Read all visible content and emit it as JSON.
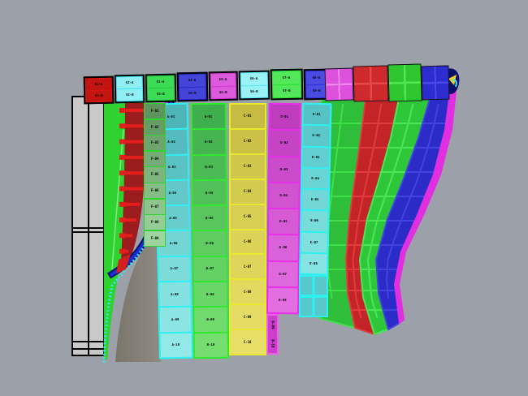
{
  "app": {
    "type": "3d-cad-viewport",
    "background": "#9CA1A9"
  },
  "top_row": {
    "panels": [
      {
        "color": "#DF1512",
        "sub_color": "#C21410",
        "labels": [
          "S1-A",
          "S1-B"
        ]
      },
      {
        "color": "#38E2EE",
        "sub_color": "#8FEFF4",
        "labels": [
          "S2-A",
          "S2-B"
        ]
      },
      {
        "color": "#27CB42",
        "sub_color": "#3BDB55",
        "labels": [
          "S3-A",
          "S3-B"
        ]
      },
      {
        "color": "#2A2BCB",
        "sub_color": "#4345D8",
        "labels": [
          "S4-A",
          "S4-B"
        ]
      },
      {
        "color": "#D236D2",
        "sub_color": "#DC5ADC",
        "labels": [
          "S5-A",
          "S5-B"
        ]
      },
      {
        "color": "#55E9F2",
        "sub_color": "#9BF2F6",
        "labels": [
          "S6-A",
          "S6-B"
        ]
      },
      {
        "color": "#2BDC34",
        "sub_color": "#52E85A",
        "labels": [
          "S7-A",
          "S7-B"
        ]
      },
      {
        "color": "#2F30D8",
        "sub_color": "#4A4BE2",
        "labels": [
          "S8-A",
          "S8-B"
        ]
      }
    ]
  },
  "plain_row": {
    "panels": [
      {
        "name": "panel-magenta",
        "color": "#DC52DC",
        "grid": "#EE84EE"
      },
      {
        "name": "panel-red",
        "color": "#CE292C",
        "grid": "#E5484B"
      },
      {
        "name": "panel-green",
        "color": "#2EC72E",
        "grid": "#52E852"
      },
      {
        "name": "panel-blue",
        "color": "#2C2CD0",
        "grid": "#4A4AE8"
      }
    ]
  },
  "plate_columns": [
    {
      "id": "A",
      "border": "#2FF0F0",
      "cells": [
        {
          "fill": "#4FB4B8",
          "label": "A-01"
        },
        {
          "fill": "#55BBBE",
          "label": "A-02"
        },
        {
          "fill": "#5BC2C4",
          "label": "A-03"
        },
        {
          "fill": "#62C8C9",
          "label": "A-04"
        },
        {
          "fill": "#68CECD",
          "label": "A-05"
        },
        {
          "fill": "#74D6D4",
          "label": "A-06"
        },
        {
          "fill": "#7DDCDA",
          "label": "A-07"
        },
        {
          "fill": "#85E1DF",
          "label": "A-08"
        },
        {
          "fill": "#8CE5E3",
          "label": "A-09"
        },
        {
          "fill": "#93E9E7",
          "label": "A-10"
        }
      ]
    },
    {
      "id": "B",
      "border": "#2FE82F",
      "cells": [
        {
          "fill": "#3FAE4C",
          "label": "B-01"
        },
        {
          "fill": "#46B450",
          "label": "B-02"
        },
        {
          "fill": "#4CBA54",
          "label": "B-03"
        },
        {
          "fill": "#52C058",
          "label": "B-04"
        },
        {
          "fill": "#58C65C",
          "label": "B-05"
        },
        {
          "fill": "#5ECC60",
          "label": "B-06"
        },
        {
          "fill": "#64D164",
          "label": "B-07"
        },
        {
          "fill": "#6AD668",
          "label": "B-08"
        },
        {
          "fill": "#70DA6C",
          "label": "B-09"
        },
        {
          "fill": "#76DE70",
          "label": "B-10"
        }
      ]
    },
    {
      "id": "C",
      "border": "#E8E82F",
      "cells": [
        {
          "fill": "#C6BC43",
          "label": "C-01"
        },
        {
          "fill": "#CBC148",
          "label": "C-02"
        },
        {
          "fill": "#CFC64C",
          "label": "C-03"
        },
        {
          "fill": "#D3CA50",
          "label": "C-04"
        },
        {
          "fill": "#D7CE54",
          "label": "C-05"
        },
        {
          "fill": "#DBD258",
          "label": "C-06"
        },
        {
          "fill": "#DED65C",
          "label": "C-07"
        },
        {
          "fill": "#E1D960",
          "label": "C-08"
        },
        {
          "fill": "#E4DC64",
          "label": "C-09"
        },
        {
          "fill": "#E7DF68",
          "label": "C-10"
        }
      ]
    },
    {
      "id": "D",
      "border": "#E82FE8",
      "cells": [
        {
          "fill": "#BE3CBE",
          "label": "D-01"
        },
        {
          "fill": "#C444C4",
          "label": "D-02"
        },
        {
          "fill": "#CA4CCA",
          "label": "D-03"
        },
        {
          "fill": "#D054D0",
          "label": "D-04"
        },
        {
          "fill": "#D55BD5",
          "label": "D-05"
        },
        {
          "fill": "#DA62DA",
          "label": "D-06"
        },
        {
          "fill": "#DE68DE",
          "label": "D-07"
        },
        {
          "fill": "#E26EE2",
          "label": "D-08"
        }
      ]
    },
    {
      "id": "E",
      "border": "#2FF0F0",
      "cells": [
        {
          "fill": "#55C2C5",
          "label": "E-01"
        },
        {
          "fill": "#5CC8CA",
          "label": "E-02"
        },
        {
          "fill": "#63CECF",
          "label": "E-03"
        },
        {
          "fill": "#6AD3D3",
          "label": "E-04"
        },
        {
          "fill": "#71D8D7",
          "label": "E-05"
        },
        {
          "fill": "#78DCDB",
          "label": "E-06"
        },
        {
          "fill": "#7FE0DF",
          "label": "E-07"
        },
        {
          "fill": "#86E4E3",
          "label": "E-08"
        }
      ]
    }
  ],
  "e_tail": {
    "fill": "#58C8CC",
    "grid": "#2FF0F0"
  },
  "frame_cells": {
    "border": "#2FD42F",
    "cells": [
      {
        "fill": "#5E945E",
        "label": "F-01"
      },
      {
        "fill": "#669C66",
        "label": "F-02"
      },
      {
        "fill": "#6EA46E",
        "label": "F-03"
      },
      {
        "fill": "#76AC76",
        "label": "F-04"
      },
      {
        "fill": "#7EB47E",
        "label": "F-05"
      },
      {
        "fill": "#86BC86",
        "label": "F-06"
      },
      {
        "fill": "#8EC48E",
        "label": "F-07"
      },
      {
        "fill": "#96CC96",
        "label": "F-08"
      },
      {
        "fill": "#9ED49E",
        "label": "F-09"
      }
    ]
  },
  "strip": {
    "fill": "#CC3FCC",
    "border": "#EE5FEE",
    "labels": [
      "D-09",
      "D-10"
    ]
  },
  "right_bands": [
    {
      "name": "band-green-inner",
      "fill": "#2EBE3A",
      "grid": "#3FE04A"
    },
    {
      "name": "band-red",
      "fill": "#C22427",
      "grid": "#E23B3E"
    },
    {
      "name": "band-green-outer",
      "fill": "#2EC73A",
      "grid": "#4AE657"
    },
    {
      "name": "band-blue",
      "fill": "#2B2BC8",
      "grid": "#4343E2"
    },
    {
      "name": "band-magenta-trim",
      "fill": "#E02EE0",
      "grid": ""
    }
  ],
  "left_assembly": {
    "plates_fill": "#C9C9C9",
    "green_fill": "#2FD32F",
    "green_line": "#86E886",
    "red_fill": "#9A1C1C",
    "red_stripe": "#E41E1E"
  },
  "curves": {
    "magenta": "#C92FC9",
    "blue": "#1C2ED6",
    "blue_dark": "#0A1170",
    "cyan_dotted": "#2FE9EE"
  },
  "surface": {
    "left": "#7B766C",
    "right": "#938F88"
  },
  "marker": {
    "body": "#0A0F6E",
    "flag": "#E8D22F",
    "arc": "#3FE8EE"
  }
}
